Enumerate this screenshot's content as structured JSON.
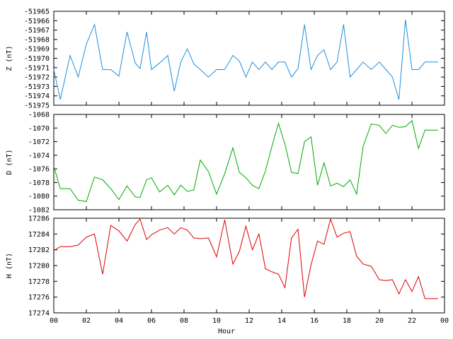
{
  "xlabel": "Hour",
  "x_ticks": [
    "00",
    "02",
    "04",
    "06",
    "08",
    "10",
    "12",
    "14",
    "16",
    "18",
    "20",
    "22",
    "00"
  ],
  "x_range": [
    0,
    24
  ],
  "chart_data": [
    {
      "type": "line",
      "ylabel": "Z (nT)",
      "color": "#1f8fdc",
      "ylim": [
        -51975,
        -51965
      ],
      "y_ticks": [
        -51965,
        -51966,
        -51967,
        -51968,
        -51969,
        -51970,
        -51971,
        -51972,
        -51973,
        -51974,
        -51975
      ],
      "y_tick_labels": [
        "-51965",
        "-51966",
        "-51967",
        "-51968",
        "-51969",
        "-51970",
        "-51971",
        "-51972",
        "-51973",
        "-51974",
        "-51975"
      ],
      "x": [
        0.0,
        0.4,
        1.0,
        1.5,
        2.0,
        2.5,
        3.0,
        3.5,
        4.0,
        4.5,
        5.0,
        5.3,
        5.7,
        6.0,
        6.5,
        7.0,
        7.4,
        7.8,
        8.2,
        8.6,
        9.0,
        9.5,
        10.0,
        10.5,
        11.0,
        11.4,
        11.8,
        12.2,
        12.6,
        13.0,
        13.4,
        13.8,
        14.2,
        14.6,
        15.0,
        15.4,
        15.8,
        16.2,
        16.6,
        17.0,
        17.4,
        17.8,
        18.2,
        18.6,
        19.0,
        19.5,
        20.0,
        20.4,
        20.8,
        21.2,
        21.6,
        22.0,
        22.4,
        22.8,
        23.2,
        23.6
      ],
      "y": [
        -51971.2,
        -51974.4,
        -51969.7,
        -51972.0,
        -51968.5,
        -51966.4,
        -51971.2,
        -51971.2,
        -51971.9,
        -51967.2,
        -51970.5,
        -51971.1,
        -51967.2,
        -51971.2,
        -51970.5,
        -51969.7,
        -51973.5,
        -51970.4,
        -51969.0,
        -51970.6,
        -51971.2,
        -51972.0,
        -51971.2,
        -51971.2,
        -51969.7,
        -51970.3,
        -51972.0,
        -51970.4,
        -51971.2,
        -51970.4,
        -51971.2,
        -51970.4,
        -51970.4,
        -51972.0,
        -51971.1,
        -51966.4,
        -51971.2,
        -51969.7,
        -51969.1,
        -51971.2,
        -51970.4,
        -51966.4,
        -51972.0,
        -51971.2,
        -51970.4,
        -51971.2,
        -51970.4,
        -51971.2,
        -51972.0,
        -51974.4,
        -51965.9,
        -51971.2,
        -51971.2,
        -51970.4,
        -51970.4,
        -51970.4
      ]
    },
    {
      "type": "line",
      "ylabel": "D (nT)",
      "color": "#00aa00",
      "ylim": [
        -1082,
        -1068
      ],
      "y_ticks": [
        -1068,
        -1070,
        -1072,
        -1074,
        -1076,
        -1078,
        -1080,
        -1082
      ],
      "y_tick_labels": [
        "-1068",
        "-1070",
        "-1072",
        "-1074",
        "-1076",
        "-1078",
        "-1080",
        "-1082"
      ],
      "x": [
        0.0,
        0.4,
        1.0,
        1.5,
        2.0,
        2.5,
        3.0,
        3.5,
        4.0,
        4.5,
        5.0,
        5.3,
        5.7,
        6.0,
        6.5,
        7.0,
        7.4,
        7.8,
        8.2,
        8.6,
        9.0,
        9.5,
        10.0,
        10.5,
        11.0,
        11.4,
        11.8,
        12.2,
        12.6,
        13.0,
        13.4,
        13.8,
        14.2,
        14.6,
        15.0,
        15.4,
        15.8,
        16.2,
        16.6,
        17.0,
        17.4,
        17.8,
        18.2,
        18.6,
        19.0,
        19.5,
        20.0,
        20.4,
        20.8,
        21.2,
        21.6,
        22.0,
        22.4,
        22.8,
        23.2,
        23.6
      ],
      "y": [
        -1075.6,
        -1078.9,
        -1078.9,
        -1080.6,
        -1080.8,
        -1077.2,
        -1077.6,
        -1078.9,
        -1080.5,
        -1078.5,
        -1080.1,
        -1080.2,
        -1077.6,
        -1077.3,
        -1079.4,
        -1078.4,
        -1079.8,
        -1078.4,
        -1079.3,
        -1079.1,
        -1074.7,
        -1076.4,
        -1079.7,
        -1076.7,
        -1072.9,
        -1076.5,
        -1077.3,
        -1078.4,
        -1078.9,
        -1076.3,
        -1072.7,
        -1069.3,
        -1072.4,
        -1076.5,
        -1076.7,
        -1072.0,
        -1071.3,
        -1078.4,
        -1075.1,
        -1078.5,
        -1078.1,
        -1078.6,
        -1077.6,
        -1079.7,
        -1072.7,
        -1069.4,
        -1069.6,
        -1070.8,
        -1069.6,
        -1069.9,
        -1069.8,
        -1068.9,
        -1073.0,
        -1070.3,
        -1070.3,
        -1070.3
      ]
    },
    {
      "type": "line",
      "ylabel": "H (nT)",
      "color": "#dd0000",
      "ylim": [
        17274,
        17286
      ],
      "y_ticks": [
        17274,
        17276,
        17278,
        17280,
        17282,
        17284,
        17286
      ],
      "y_tick_labels": [
        "17274",
        "17276",
        "17278",
        "17280",
        "17282",
        "17284",
        "17286"
      ],
      "x": [
        0.0,
        0.4,
        1.0,
        1.5,
        2.0,
        2.5,
        3.0,
        3.5,
        4.0,
        4.5,
        5.0,
        5.3,
        5.7,
        6.0,
        6.5,
        7.0,
        7.4,
        7.8,
        8.2,
        8.6,
        9.0,
        9.5,
        10.0,
        10.5,
        11.0,
        11.4,
        11.8,
        12.2,
        12.6,
        13.0,
        13.4,
        13.8,
        14.2,
        14.6,
        15.0,
        15.4,
        15.8,
        16.2,
        16.6,
        17.0,
        17.4,
        17.8,
        18.2,
        18.6,
        19.0,
        19.5,
        20.0,
        20.4,
        20.8,
        21.2,
        21.6,
        22.0,
        22.4,
        22.8,
        23.2,
        23.6
      ],
      "y": [
        17281.9,
        17282.4,
        17282.4,
        17282.6,
        17283.6,
        17284.0,
        17278.9,
        17285.1,
        17284.4,
        17283.1,
        17285.2,
        17285.9,
        17283.3,
        17283.9,
        17284.5,
        17284.8,
        17284.0,
        17284.8,
        17284.5,
        17283.5,
        17283.4,
        17283.5,
        17281.1,
        17285.8,
        17280.2,
        17281.8,
        17285.0,
        17282.0,
        17284.0,
        17279.6,
        17279.2,
        17278.9,
        17277.2,
        17283.5,
        17284.6,
        17276.0,
        17280.1,
        17283.1,
        17282.7,
        17285.9,
        17283.6,
        17284.1,
        17284.3,
        17281.2,
        17280.2,
        17279.9,
        17278.2,
        17278.1,
        17278.2,
        17276.4,
        17278.2,
        17276.7,
        17278.6,
        17275.8,
        17275.8,
        17275.8
      ]
    }
  ]
}
